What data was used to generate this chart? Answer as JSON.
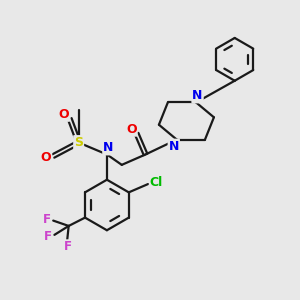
{
  "background_color": "#e8e8e8",
  "bond_color": "#1a1a1a",
  "atom_colors": {
    "N": "#0000ee",
    "O": "#ee0000",
    "S": "#cccc00",
    "Cl": "#00bb00",
    "F": "#cc44cc",
    "C": "#1a1a1a"
  },
  "figsize": [
    3.0,
    3.0
  ],
  "dpi": 100,
  "lw": 1.6
}
